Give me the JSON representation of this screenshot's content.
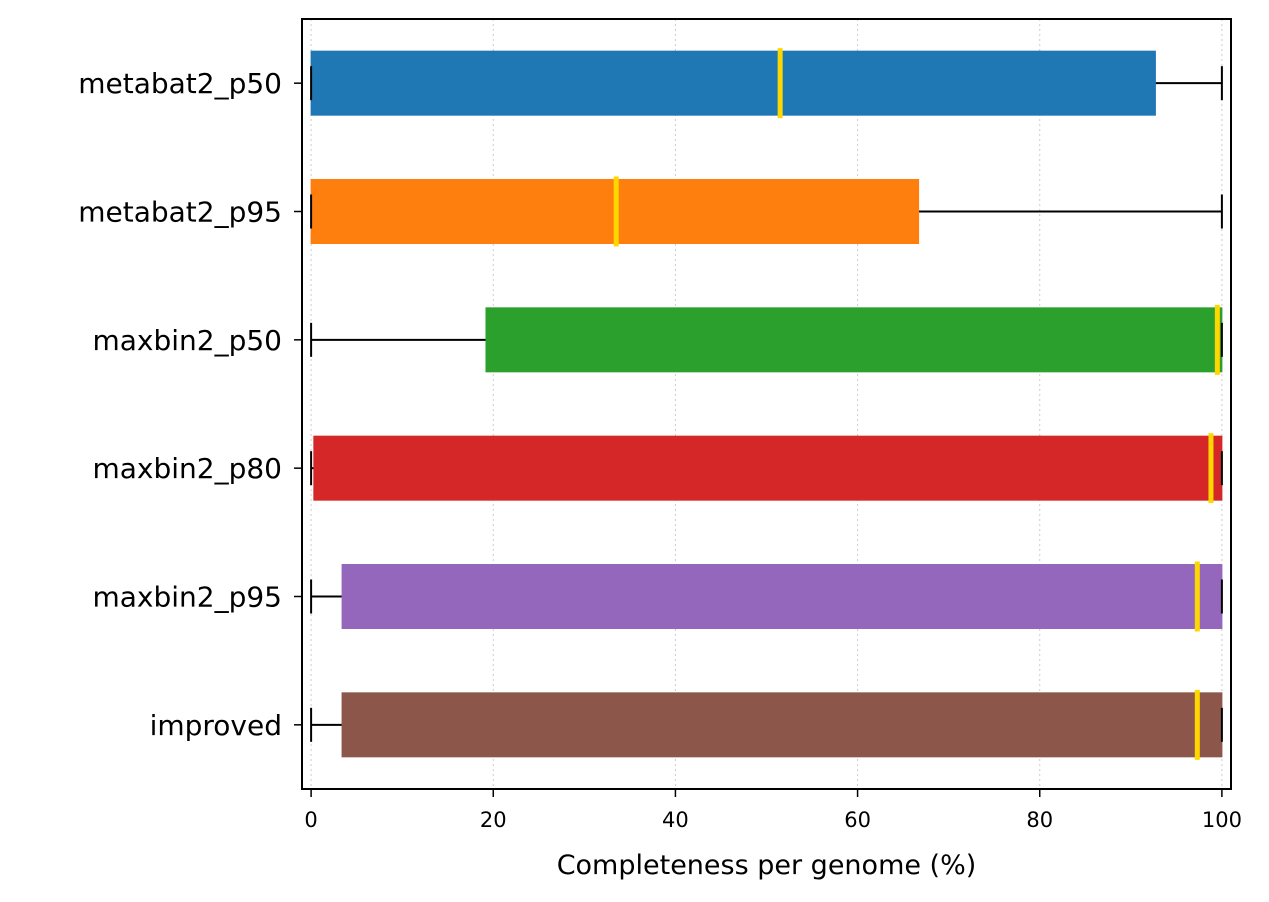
{
  "chart_data": {
    "type": "boxplot-horizontal",
    "xlabel": "Completeness per genome (%)",
    "ylabel": "",
    "xlim": [
      -1,
      101
    ],
    "xticks": [
      0,
      20,
      40,
      60,
      80,
      100
    ],
    "grid": "x-dotted",
    "median_color": "#ffd700",
    "series": [
      {
        "name": "metabat2_p50",
        "color": "#1f77b4",
        "whisker_low": 0,
        "q1": 0,
        "median": 51.5,
        "q3": 92.7,
        "whisker_high": 100
      },
      {
        "name": "metabat2_p95",
        "color": "#ff7f0e",
        "whisker_low": 0,
        "q1": 0,
        "median": 33.5,
        "q3": 66.7,
        "whisker_high": 100
      },
      {
        "name": "maxbin2_p50",
        "color": "#2ca02c",
        "whisker_low": 0,
        "q1": 19.2,
        "median": 99.5,
        "q3": 100,
        "whisker_high": 100
      },
      {
        "name": "maxbin2_p80",
        "color": "#d62728",
        "whisker_low": 0,
        "q1": 0.3,
        "median": 98.8,
        "q3": 100,
        "whisker_high": 100
      },
      {
        "name": "maxbin2_p95",
        "color": "#9467bd",
        "whisker_low": 0,
        "q1": 3.4,
        "median": 97.3,
        "q3": 100,
        "whisker_high": 100
      },
      {
        "name": "improved",
        "color": "#8c564b",
        "whisker_low": 0,
        "q1": 3.4,
        "median": 97.3,
        "q3": 100,
        "whisker_high": 100
      }
    ]
  }
}
